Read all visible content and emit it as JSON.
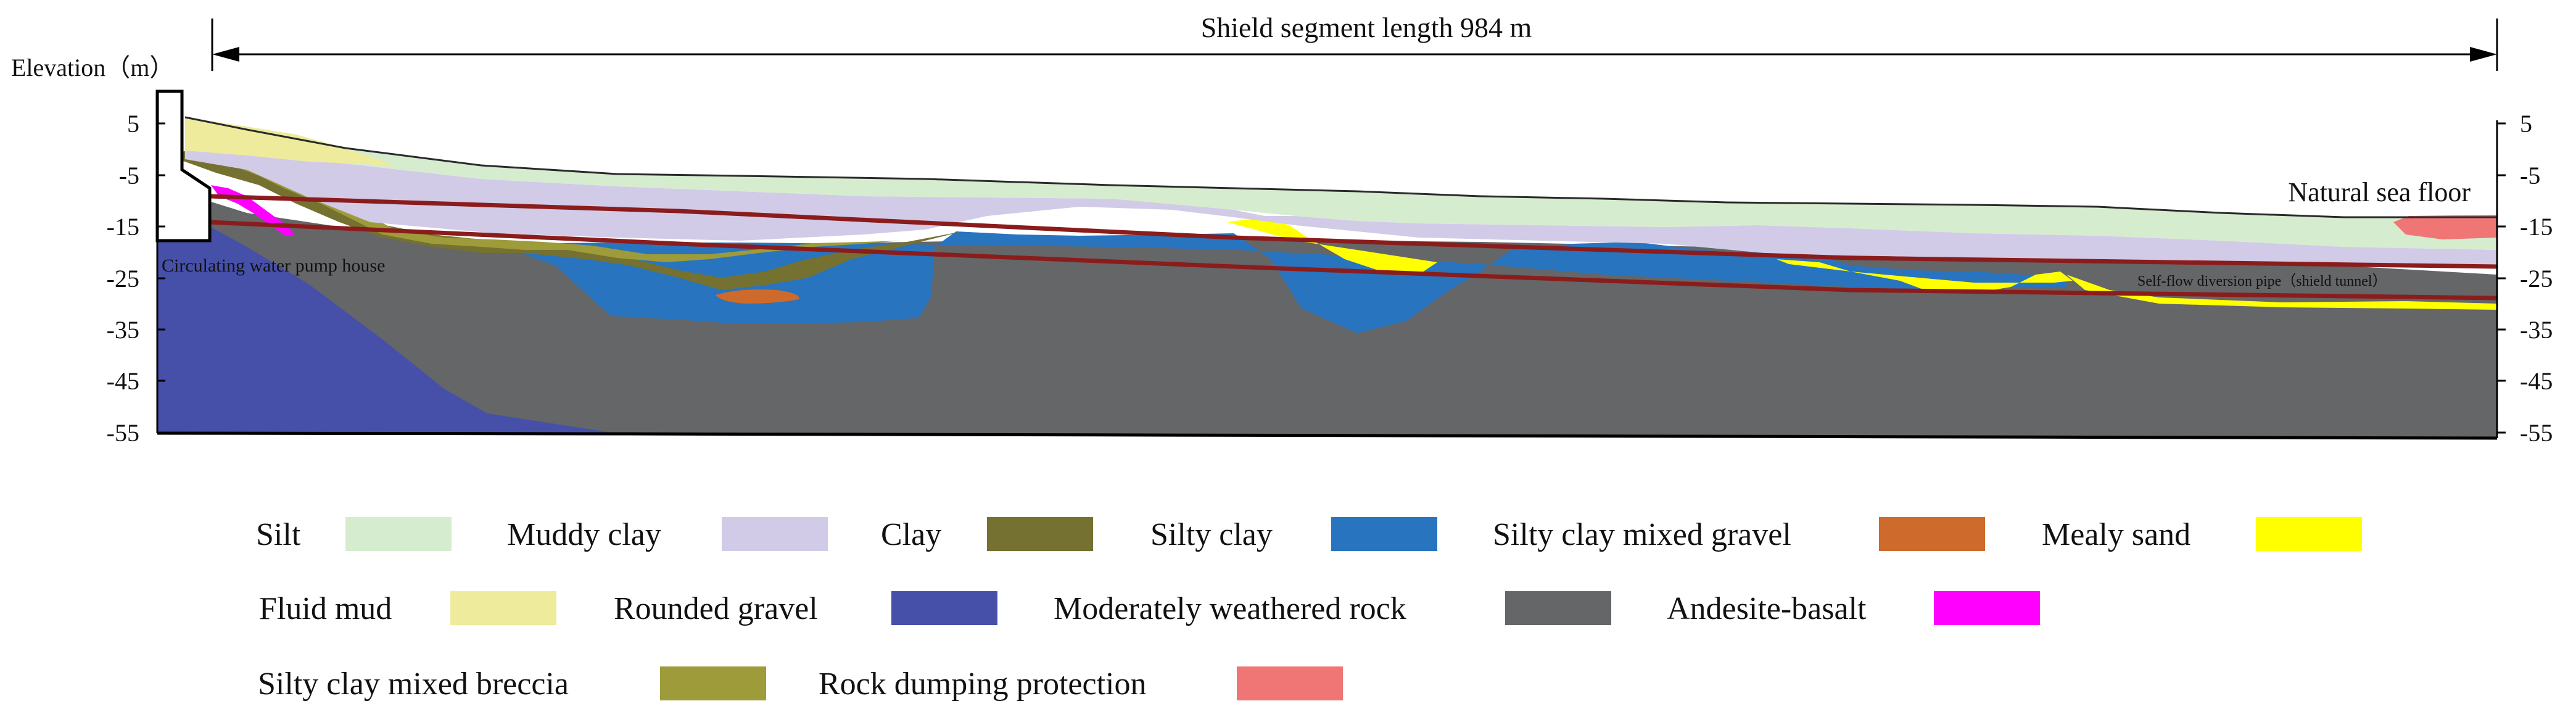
{
  "dimension": {
    "label": "Shield segment length 984 m"
  },
  "axis": {
    "title": "Elevation（m）",
    "ticks": [
      "5",
      "-5",
      "-15",
      "-25",
      "-35",
      "-45",
      "-55"
    ]
  },
  "annotations": {
    "natural_sea_floor": "Natural sea floor",
    "pump_house": "Circulating water pump house",
    "diversion_pipe": "Self-flow diversion pipe（shield tunnel）"
  },
  "legend": [
    {
      "label": "Silt",
      "color": "#d6eccf"
    },
    {
      "label": "Muddy clay",
      "color": "#d1cbe8"
    },
    {
      "label": "Clay",
      "color": "#757130"
    },
    {
      "label": "Silty clay",
      "color": "#2874bf"
    },
    {
      "label": "Silty clay mixed gravel",
      "color": "#ce6a2b"
    },
    {
      "label": "Mealy sand",
      "color": "#ffff00"
    },
    {
      "label": "Fluid mud",
      "color": "#eeeb9c"
    },
    {
      "label": "Rounded gravel",
      "color": "#4650a8"
    },
    {
      "label": "Moderately weathered rock",
      "color": "#646668"
    },
    {
      "label": "Andesite-basalt",
      "color": "#ff00ff"
    },
    {
      "label": "Silty clay mixed breccia",
      "color": "#9d9b3a"
    },
    {
      "label": "Rock dumping protection",
      "color": "#f07575"
    }
  ],
  "colors": {
    "tunnel_line": "#8b1c1c",
    "outline": "#000000",
    "seafloor_line": "#2a2a2a"
  }
}
